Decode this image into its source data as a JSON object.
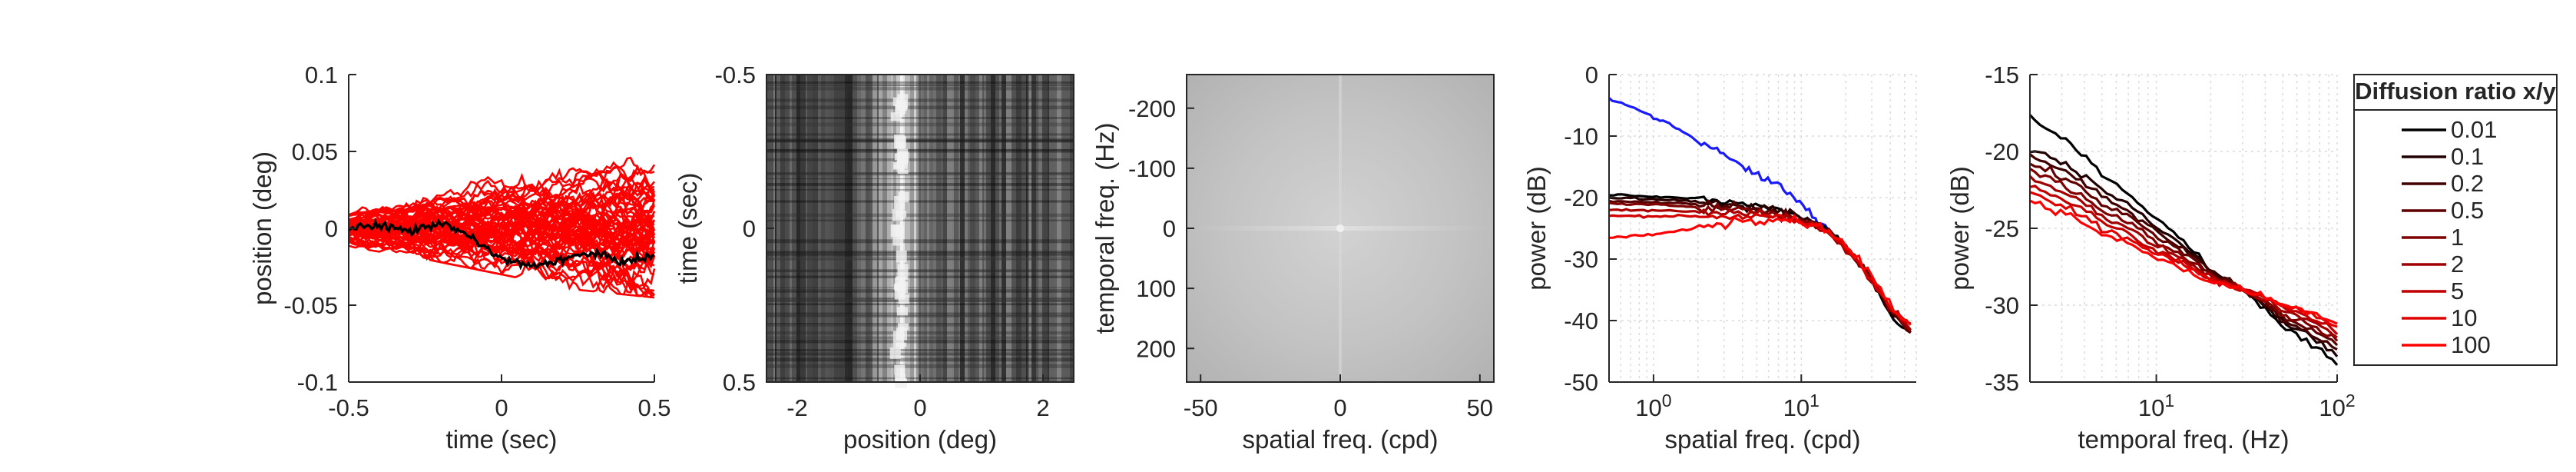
{
  "chart_data": [
    {
      "type": "line",
      "xlabel": "time (sec)",
      "ylabel": "position (deg)",
      "xlim": [
        -0.5,
        0.5
      ],
      "ylim": [
        -0.1,
        0.1
      ],
      "xticks": [
        "-0.5",
        "0",
        "0.5"
      ],
      "yticks": [
        "0.1",
        "0.05",
        "0",
        "-0.05",
        "-0.1"
      ],
      "grid": false,
      "note_series": "many red random-walk traces (diffusion trajectories) with one black trace",
      "series": [
        {
          "color": "#000000",
          "x": [
            -0.5,
            -0.4,
            -0.3,
            -0.2,
            -0.1,
            0,
            0.1,
            0.2,
            0.3,
            0.4,
            0.5
          ],
          "values": [
            0.0,
            0.002,
            -0.002,
            0.004,
            -0.006,
            -0.02,
            -0.025,
            -0.02,
            -0.016,
            -0.022,
            -0.018
          ]
        }
      ],
      "red_envelope": {
        "x": [
          -0.5,
          -0.25,
          0,
          0.25,
          0.5
        ],
        "upper": [
          0.012,
          0.025,
          0.035,
          0.042,
          0.05
        ],
        "lower": [
          -0.012,
          -0.02,
          -0.03,
          -0.04,
          -0.045
        ]
      }
    },
    {
      "type": "heatmap",
      "xlabel": "position (deg)",
      "ylabel": "time (sec)",
      "xlim": [
        -2.5,
        2.5
      ],
      "ylim": [
        -0.5,
        0.5
      ],
      "xticks": [
        "-2",
        "0",
        "2"
      ],
      "yticks": [
        "-0.5",
        "0",
        "0.5"
      ],
      "colormap": "gray",
      "bright_band_position_deg": -0.3
    },
    {
      "type": "heatmap",
      "xlabel": "spatial freq. (cpd)",
      "ylabel": "temporal freq. (Hz)",
      "xlim": [
        -55,
        55
      ],
      "ylim": [
        -256,
        256
      ],
      "xticks": [
        "-50",
        "0",
        "50"
      ],
      "yticks": [
        "-200",
        "-100",
        "0",
        "100",
        "200"
      ],
      "colormap": "gray"
    },
    {
      "type": "line",
      "xlabel": "spatial freq. (cpd)",
      "ylabel": "power (dB)",
      "xscale": "log",
      "xlim": [
        0.5,
        60
      ],
      "ylim": [
        -50,
        0
      ],
      "xticks": [
        "10^0",
        "10^1"
      ],
      "yticks": [
        "0",
        "-10",
        "-20",
        "-30",
        "-40",
        "-50"
      ],
      "grid": true,
      "series": [
        {
          "color": "#1a1aff",
          "x": [
            0.5,
            1,
            2,
            4,
            8,
            12,
            16
          ],
          "values": [
            -4,
            -7,
            -11,
            -15,
            -19,
            -23,
            -26
          ]
        },
        {
          "color": "#000000",
          "x": [
            0.5,
            1,
            2,
            4,
            8,
            15,
            25,
            40,
            55
          ],
          "values": [
            -19.5,
            -19.8,
            -20.3,
            -21,
            -22.3,
            -25,
            -31,
            -39,
            -42
          ]
        },
        {
          "color": "#2b0000",
          "x": [
            0.5,
            1,
            2,
            4,
            8,
            15,
            25,
            40,
            55
          ],
          "values": [
            -20,
            -20.3,
            -20.7,
            -21.3,
            -22.5,
            -25.2,
            -31,
            -38.8,
            -41.8
          ]
        },
        {
          "color": "#550000",
          "x": [
            0.5,
            1,
            2,
            4,
            8,
            15,
            25,
            40,
            55
          ],
          "values": [
            -20.5,
            -20.8,
            -21.1,
            -21.7,
            -22.7,
            -25.3,
            -31,
            -38.6,
            -41.6
          ]
        },
        {
          "color": "#7f0000",
          "x": [
            0.5,
            1,
            2,
            4,
            8,
            15,
            25,
            40,
            55
          ],
          "values": [
            -21,
            -21.2,
            -21.5,
            -22,
            -23,
            -25.4,
            -31,
            -38.4,
            -41.4
          ]
        },
        {
          "color": "#aa0000",
          "x": [
            0.5,
            1,
            2,
            4,
            8,
            15,
            25,
            40,
            55
          ],
          "values": [
            -22,
            -22.1,
            -22.2,
            -22.5,
            -23.3,
            -25.5,
            -31,
            -38.2,
            -41.2
          ]
        },
        {
          "color": "#d40000",
          "x": [
            0.5,
            1,
            2,
            4,
            8,
            15,
            25,
            40,
            55
          ],
          "values": [
            -23,
            -23,
            -23,
            -23,
            -23.5,
            -25.5,
            -30.8,
            -38,
            -41
          ]
        },
        {
          "color": "#ff0000",
          "x": [
            0.5,
            1,
            2,
            4,
            8,
            15,
            25,
            40,
            55
          ],
          "values": [
            -26.5,
            -26,
            -24.8,
            -23.5,
            -23.4,
            -25.2,
            -30.5,
            -37.6,
            -40.5
          ]
        }
      ]
    },
    {
      "type": "line",
      "xlabel": "temporal freq. (Hz)",
      "ylabel": "power (dB)",
      "xscale": "log",
      "xlim": [
        2,
        100
      ],
      "ylim": [
        -35,
        -15
      ],
      "xticks": [
        "10^1",
        "10^2"
      ],
      "yticks": [
        "-15",
        "-20",
        "-25",
        "-30",
        "-35"
      ],
      "grid": true,
      "legend": {
        "title": "Diffusion ratio x/y",
        "placement": "right",
        "entries": [
          "0.01",
          "0.1",
          "0.2",
          "0.5",
          "1",
          "2",
          "5",
          "10",
          "100"
        ],
        "colors": [
          "#000000",
          "#200000",
          "#400000",
          "#600000",
          "#800000",
          "#a00000",
          "#c00000",
          "#e00000",
          "#ff0000"
        ]
      },
      "series": [
        {
          "name": "0.01",
          "color": "#000000",
          "x": [
            2,
            5,
            10,
            20,
            50,
            100
          ],
          "values": [
            -17.8,
            -21.5,
            -24.5,
            -27.8,
            -31.5,
            -33.8
          ]
        },
        {
          "name": "0.1",
          "color": "#200000",
          "x": [
            2,
            5,
            10,
            20,
            50,
            100
          ],
          "values": [
            -19.8,
            -22.5,
            -25,
            -27.8,
            -31.2,
            -33.3
          ]
        },
        {
          "name": "0.2",
          "color": "#400000",
          "x": [
            2,
            5,
            10,
            20,
            50,
            100
          ],
          "values": [
            -20.3,
            -23,
            -25.3,
            -27.9,
            -31,
            -32.9
          ]
        },
        {
          "name": "0.5",
          "color": "#600000",
          "x": [
            2,
            5,
            10,
            20,
            50,
            100
          ],
          "values": [
            -20.8,
            -23.4,
            -25.6,
            -28,
            -30.8,
            -32.6
          ]
        },
        {
          "name": "1",
          "color": "#800000",
          "x": [
            2,
            5,
            10,
            20,
            50,
            100
          ],
          "values": [
            -21.3,
            -23.8,
            -25.9,
            -28.1,
            -30.6,
            -32.3
          ]
        },
        {
          "name": "2",
          "color": "#a00000",
          "x": [
            2,
            5,
            10,
            20,
            50,
            100
          ],
          "values": [
            -21.8,
            -24.2,
            -26.2,
            -28.2,
            -30.4,
            -32
          ]
        },
        {
          "name": "5",
          "color": "#c00000",
          "x": [
            2,
            5,
            10,
            20,
            50,
            100
          ],
          "values": [
            -22.3,
            -24.6,
            -26.5,
            -28.3,
            -30.2,
            -31.7
          ]
        },
        {
          "name": "10",
          "color": "#e00000",
          "x": [
            2,
            5,
            10,
            20,
            50,
            100
          ],
          "values": [
            -22.8,
            -25,
            -26.7,
            -28.4,
            -30,
            -31.4
          ]
        },
        {
          "name": "100",
          "color": "#ff0000",
          "x": [
            2,
            5,
            10,
            20,
            50,
            100
          ],
          "values": [
            -23.3,
            -25.4,
            -27,
            -28.5,
            -29.9,
            -31.2
          ]
        }
      ]
    }
  ]
}
